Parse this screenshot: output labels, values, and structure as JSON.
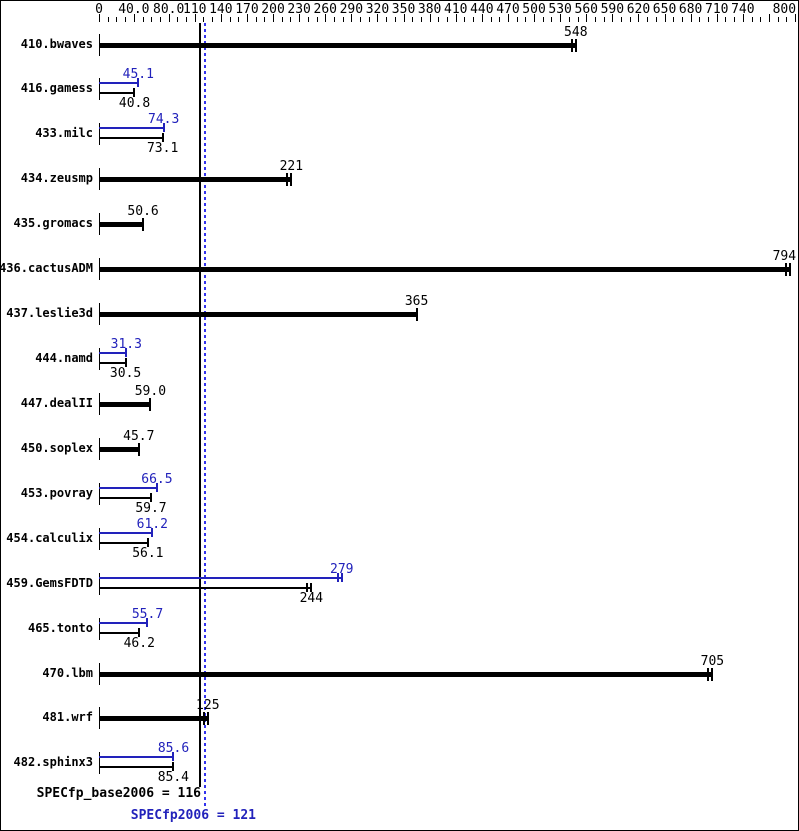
{
  "colors": {
    "background": "#ffffff",
    "border": "#000000",
    "text": "#000000",
    "bar_base": "#000000",
    "bar_peak": "#2222bb",
    "ref_line_base": "#000000",
    "ref_line_peak": "#3333ee"
  },
  "chart_data": {
    "type": "bar",
    "orientation": "horizontal",
    "title": "",
    "xlabel": "",
    "ylabel": "",
    "xlim": [
      0,
      800
    ],
    "grid": false,
    "legend": "none",
    "axis": {
      "position": "top",
      "minor_step": 10,
      "max": 800,
      "extra_major_ticks": [
        770
      ],
      "labeled_ticks": [
        {
          "label": "0",
          "value": 0
        },
        {
          "label": "40.0",
          "value": 40
        },
        {
          "label": "80.0",
          "value": 80
        },
        {
          "label": "110",
          "value": 110
        },
        {
          "label": "140",
          "value": 140
        },
        {
          "label": "170",
          "value": 170
        },
        {
          "label": "200",
          "value": 200
        },
        {
          "label": "230",
          "value": 230
        },
        {
          "label": "260",
          "value": 260
        },
        {
          "label": "290",
          "value": 290
        },
        {
          "label": "320",
          "value": 320
        },
        {
          "label": "350",
          "value": 350
        },
        {
          "label": "380",
          "value": 380
        },
        {
          "label": "410",
          "value": 410
        },
        {
          "label": "440",
          "value": 440
        },
        {
          "label": "470",
          "value": 470
        },
        {
          "label": "500",
          "value": 500
        },
        {
          "label": "530",
          "value": 530
        },
        {
          "label": "560",
          "value": 560
        },
        {
          "label": "590",
          "value": 590
        },
        {
          "label": "620",
          "value": 620
        },
        {
          "label": "650",
          "value": 650
        },
        {
          "label": "680",
          "value": 680
        },
        {
          "label": "710",
          "value": 710
        },
        {
          "label": "740",
          "value": 740
        },
        {
          "label": "800",
          "value": 800
        }
      ]
    },
    "series_names": {
      "base": "SPECfp_base2006",
      "peak": "SPECfp2006"
    },
    "benchmarks": [
      {
        "name": "410.bwaves",
        "base": 548,
        "base_display": "548",
        "base_end_ticks": 2,
        "peak": null
      },
      {
        "name": "416.gamess",
        "base": 40.8,
        "base_display": "40.8",
        "base_end_ticks": 1,
        "peak": 45.1,
        "peak_display": "45.1",
        "peak_end_ticks": 1
      },
      {
        "name": "433.milc",
        "base": 73.1,
        "base_display": "73.1",
        "base_end_ticks": 1,
        "peak": 74.3,
        "peak_display": "74.3",
        "peak_end_ticks": 1
      },
      {
        "name": "434.zeusmp",
        "base": 221,
        "base_display": "221",
        "base_end_ticks": 2,
        "peak": null
      },
      {
        "name": "435.gromacs",
        "base": 50.6,
        "base_display": "50.6",
        "base_end_ticks": 1,
        "peak": null
      },
      {
        "name": "436.cactusADM",
        "base": 794,
        "base_display": "794",
        "base_end_ticks": 2,
        "peak": null
      },
      {
        "name": "437.leslie3d",
        "base": 365,
        "base_display": "365",
        "base_end_ticks": 1,
        "peak": null
      },
      {
        "name": "444.namd",
        "base": 30.5,
        "base_display": "30.5",
        "base_end_ticks": 1,
        "peak": 31.3,
        "peak_display": "31.3",
        "peak_end_ticks": 1
      },
      {
        "name": "447.dealII",
        "base": 59.0,
        "base_display": "59.0",
        "base_end_ticks": 1,
        "peak": null
      },
      {
        "name": "450.soplex",
        "base": 45.7,
        "base_display": "45.7",
        "base_end_ticks": 1,
        "peak": null
      },
      {
        "name": "453.povray",
        "base": 59.7,
        "base_display": "59.7",
        "base_end_ticks": 1,
        "peak": 66.5,
        "peak_display": "66.5",
        "peak_end_ticks": 1
      },
      {
        "name": "454.calculix",
        "base": 56.1,
        "base_display": "56.1",
        "base_end_ticks": 1,
        "peak": 61.2,
        "peak_display": "61.2",
        "peak_end_ticks": 1
      },
      {
        "name": "459.GemsFDTD",
        "base": 244,
        "base_display": "244",
        "base_end_ticks": 2,
        "peak": 279,
        "peak_display": "279",
        "peak_end_ticks": 2
      },
      {
        "name": "465.tonto",
        "base": 46.2,
        "base_display": "46.2",
        "base_end_ticks": 1,
        "peak": 55.7,
        "peak_display": "55.7",
        "peak_end_ticks": 1
      },
      {
        "name": "470.lbm",
        "base": 705,
        "base_display": "705",
        "base_end_ticks": 2,
        "peak": null
      },
      {
        "name": "481.wrf",
        "base": 125,
        "base_display": "125",
        "base_end_ticks": 2,
        "peak": null
      },
      {
        "name": "482.sphinx3",
        "base": 85.4,
        "base_display": "85.4",
        "base_end_ticks": 1,
        "peak": 85.6,
        "peak_display": "85.6",
        "peak_end_ticks": 1
      }
    ],
    "summary": {
      "base_text": "SPECfp_base2006 = 116",
      "base_value": 116,
      "peak_text": "SPECfp2006 = 121",
      "peak_value": 121
    }
  }
}
